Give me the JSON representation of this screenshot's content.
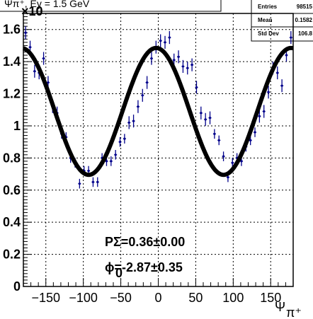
{
  "title": "Ψπ⁺, Eγ = 1.5 GeV",
  "stats": {
    "rows": [
      {
        "label": "Entries",
        "value": "98515"
      },
      {
        "label": "Mean",
        "value": "0.1582"
      },
      {
        "label": "Std Dev",
        "value": "106.8"
      }
    ]
  },
  "fit_results": {
    "line1": "PΣ=0.36±0.00",
    "line2": "ϕ=-2.87±0.35",
    "line2_sub": "0"
  },
  "chart_data": {
    "type": "scatter",
    "xlabel": "Ψ",
    "xlabel_sub": "π⁺",
    "ylabel": "",
    "y_exponent": "×10",
    "xlim": [
      -180,
      180
    ],
    "ylim": [
      0,
      1.7
    ],
    "grid": true,
    "x_ticks": [
      -150,
      -100,
      -50,
      0,
      50,
      100,
      150
    ],
    "y_ticks": [
      0,
      0.2,
      0.4,
      0.6,
      0.8,
      1,
      1.2,
      1.4,
      1.6
    ],
    "x_tick_labels": [
      "−150",
      "−100",
      "−50",
      "0",
      "50",
      "100",
      "150"
    ],
    "y_tick_labels": [
      "0",
      "0.2",
      "0.4",
      "0.6",
      "0.8",
      "1",
      "1.2",
      "1.4",
      "1.6"
    ],
    "fit": {
      "a": 1.09,
      "b": 0.395,
      "phase_deg": -2.87
    },
    "points": {
      "x": [
        -177,
        -171,
        -165,
        -159,
        -153,
        -147,
        -141,
        -135,
        -129,
        -123,
        -117,
        -111,
        -105,
        -99,
        -93,
        -87,
        -81,
        -75,
        -69,
        -63,
        -57,
        -51,
        -45,
        -39,
        -33,
        -27,
        -21,
        -15,
        -9,
        -3,
        3,
        9,
        15,
        21,
        27,
        33,
        39,
        45,
        51,
        57,
        63,
        69,
        75,
        81,
        87,
        93,
        99,
        105,
        111,
        117,
        123,
        129,
        135,
        141,
        147,
        153,
        159,
        165,
        171,
        177
      ],
      "y": [
        1.58,
        1.49,
        1.34,
        1.33,
        1.42,
        1.27,
        1.12,
        1.08,
        0.95,
        0.93,
        0.8,
        0.77,
        0.64,
        0.72,
        0.72,
        0.65,
        0.65,
        0.8,
        0.78,
        0.78,
        0.82,
        0.9,
        0.92,
        1.02,
        1.03,
        1.12,
        1.19,
        1.27,
        1.42,
        1.49,
        1.53,
        1.52,
        1.55,
        1.41,
        1.43,
        1.37,
        1.36,
        1.38,
        1.24,
        1.08,
        1.04,
        1.05,
        0.95,
        0.91,
        0.81,
        0.68,
        0.77,
        0.8,
        0.78,
        0.87,
        0.91,
        0.96,
        1.06,
        1.09,
        1.21,
        1.36,
        1.33,
        1.25,
        1.44,
        1.55
      ],
      "err": [
        0.04,
        0.04,
        0.04,
        0.04,
        0.04,
        0.04,
        0.04,
        0.04,
        0.03,
        0.03,
        0.03,
        0.03,
        0.03,
        0.03,
        0.03,
        0.03,
        0.03,
        0.03,
        0.03,
        0.03,
        0.03,
        0.03,
        0.03,
        0.04,
        0.04,
        0.04,
        0.04,
        0.04,
        0.04,
        0.04,
        0.04,
        0.04,
        0.04,
        0.04,
        0.04,
        0.04,
        0.04,
        0.04,
        0.04,
        0.04,
        0.04,
        0.04,
        0.03,
        0.03,
        0.03,
        0.03,
        0.03,
        0.03,
        0.03,
        0.03,
        0.03,
        0.03,
        0.04,
        0.04,
        0.04,
        0.04,
        0.04,
        0.04,
        0.04,
        0.04
      ]
    }
  },
  "colors": {
    "points": "#00008b",
    "fit": "#000000",
    "grid": "#000000",
    "frame": "#000000"
  }
}
